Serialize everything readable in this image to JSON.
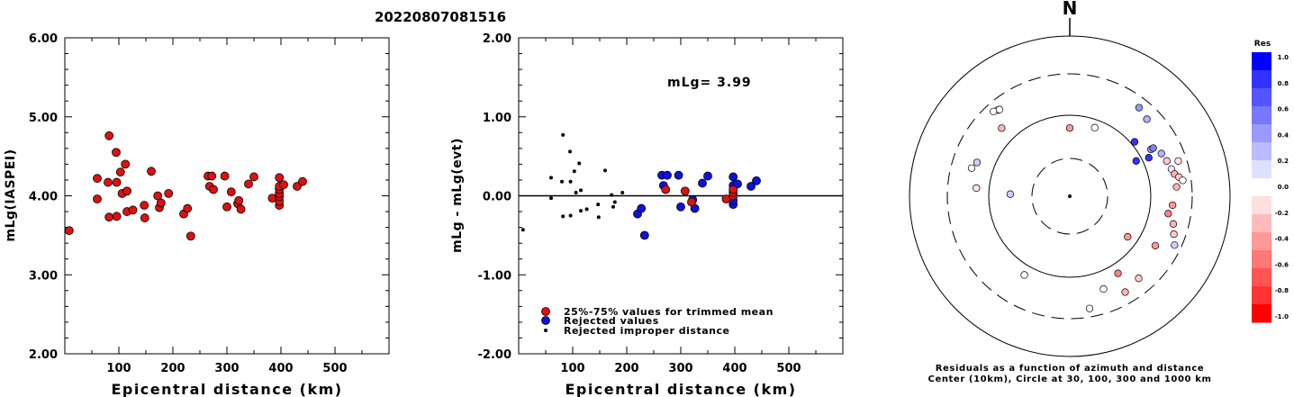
{
  "header": {
    "title": "20220807081516"
  },
  "panel1": {
    "ylabel": "mLg(IASPEI)",
    "xlabel": "Epicentral distance (km)"
  },
  "panel2": {
    "ylabel": "mLg - mLg(evt)",
    "xlabel": "Epicentral distance (km)",
    "mlg_text": "mLg= 3.99"
  },
  "legend": {
    "items": [
      {
        "label": "25%-75% values for trimmed mean",
        "color": "#dd1111"
      },
      {
        "label": "Rejected values",
        "color": "#1111dd"
      },
      {
        "label": "Rejected improper distance",
        "color": "#000000"
      }
    ]
  },
  "polar": {
    "north_label": "N",
    "caption_line1": "Residuals as a function of azimuth and distance",
    "caption_line2": "Center (10km), Circle at 30, 100, 300 and 1000 km"
  },
  "colorbar": {
    "title": "Res",
    "ticks": [
      "1.0",
      "0.8",
      "0.6",
      "0.4",
      "0.2",
      "0.0",
      "-0.2",
      "-0.4",
      "-0.6",
      "-0.8",
      "-1.0"
    ],
    "colors": [
      "#0000ff",
      "#3333ff",
      "#5555ff",
      "#7777ff",
      "#9999ff",
      "#bbbbff",
      "#dfdfff",
      "#ffffff",
      "#ffdfdf",
      "#ffbbbb",
      "#ff9999",
      "#ff7777",
      "#ff5555",
      "#ff3333",
      "#ff0000"
    ]
  },
  "chart_data": [
    {
      "type": "scatter",
      "title": "20220807081516",
      "xlabel": "Epicentral distance (km)",
      "ylabel": "mLg(IASPEI)",
      "xlim": [
        0,
        600
      ],
      "ylim": [
        2.0,
        6.0
      ],
      "x_ticks": [
        "100",
        "200",
        "300",
        "400",
        "500"
      ],
      "y_ticks": [
        "2.00",
        "3.00",
        "4.00",
        "5.00",
        "6.00"
      ],
      "points": [
        [
          8,
          3.56
        ],
        [
          60,
          4.22
        ],
        [
          60,
          3.96
        ],
        [
          80,
          4.17
        ],
        [
          82,
          4.76
        ],
        [
          82,
          3.73
        ],
        [
          95,
          4.55
        ],
        [
          96,
          4.17
        ],
        [
          96,
          3.74
        ],
        [
          103,
          4.3
        ],
        [
          106,
          4.03
        ],
        [
          112,
          4.4
        ],
        [
          115,
          4.06
        ],
        [
          115,
          3.8
        ],
        [
          126,
          3.82
        ],
        [
          147,
          3.88
        ],
        [
          148,
          3.72
        ],
        [
          160,
          4.31
        ],
        [
          172,
          4.0
        ],
        [
          175,
          3.85
        ],
        [
          178,
          3.91
        ],
        [
          192,
          4.03
        ],
        [
          220,
          3.77
        ],
        [
          227,
          3.84
        ],
        [
          233,
          3.49
        ],
        [
          265,
          4.25
        ],
        [
          268,
          4.12
        ],
        [
          272,
          4.25
        ],
        [
          275,
          4.08
        ],
        [
          296,
          4.25
        ],
        [
          300,
          3.86
        ],
        [
          308,
          4.05
        ],
        [
          320,
          3.9
        ],
        [
          322,
          3.94
        ],
        [
          326,
          3.83
        ],
        [
          340,
          4.15
        ],
        [
          350,
          4.24
        ],
        [
          384,
          3.97
        ],
        [
          397,
          3.88
        ],
        [
          397,
          3.93
        ],
        [
          397,
          3.99
        ],
        [
          397,
          4.03
        ],
        [
          397,
          4.08
        ],
        [
          397,
          4.12
        ],
        [
          397,
          4.23
        ],
        [
          405,
          4.14
        ],
        [
          430,
          4.12
        ],
        [
          440,
          4.18
        ]
      ]
    },
    {
      "type": "scatter",
      "xlabel": "Epicentral distance (km)",
      "ylabel": "mLg - mLg(evt)",
      "xlim": [
        0,
        600
      ],
      "ylim": [
        -2.0,
        2.0
      ],
      "x_ticks": [
        "100",
        "200",
        "300",
        "400",
        "500"
      ],
      "y_ticks": [
        "-2.00",
        "-1.00",
        "0.00",
        "1.00",
        "2.00"
      ],
      "annotation": "mLg= 3.99",
      "hline": 0.0,
      "series": [
        {
          "name": "25%-75% values for trimmed mean",
          "points": [
            [
              272,
              0.08
            ],
            [
              308,
              0.06
            ],
            [
              320,
              -0.08
            ],
            [
              384,
              -0.04
            ],
            [
              397,
              0.0
            ],
            [
              397,
              0.04
            ],
            [
              397,
              0.08
            ]
          ]
        },
        {
          "name": "Rejected values",
          "points": [
            [
              220,
              -0.23
            ],
            [
              227,
              -0.16
            ],
            [
              233,
              -0.5
            ],
            [
              265,
              0.26
            ],
            [
              268,
              0.13
            ],
            [
              275,
              0.26
            ],
            [
              296,
              0.26
            ],
            [
              300,
              -0.14
            ],
            [
              322,
              -0.05
            ],
            [
              326,
              -0.16
            ],
            [
              340,
              0.16
            ],
            [
              350,
              0.25
            ],
            [
              397,
              -0.11
            ],
            [
              397,
              -0.06
            ],
            [
              397,
              0.13
            ],
            [
              397,
              0.24
            ],
            [
              405,
              0.15
            ],
            [
              430,
              0.12
            ],
            [
              440,
              0.19
            ]
          ]
        },
        {
          "name": "Rejected improper distance",
          "points": [
            [
              8,
              -0.43
            ],
            [
              60,
              0.23
            ],
            [
              60,
              -0.03
            ],
            [
              80,
              0.18
            ],
            [
              82,
              0.77
            ],
            [
              82,
              -0.26
            ],
            [
              95,
              0.56
            ],
            [
              96,
              0.18
            ],
            [
              96,
              -0.25
            ],
            [
              103,
              0.31
            ],
            [
              106,
              0.04
            ],
            [
              112,
              0.41
            ],
            [
              115,
              0.07
            ],
            [
              115,
              -0.19
            ],
            [
              126,
              -0.17
            ],
            [
              147,
              -0.11
            ],
            [
              148,
              -0.27
            ],
            [
              160,
              0.32
            ],
            [
              172,
              0.01
            ],
            [
              175,
              -0.14
            ],
            [
              178,
              -0.08
            ],
            [
              192,
              0.04
            ]
          ]
        }
      ]
    },
    {
      "type": "scatter",
      "subtype": "polar",
      "description_text": "Residuals as a function of azimuth and distance",
      "radial_scale": "log",
      "rings_km": [
        10,
        30,
        100,
        300,
        1000
      ],
      "points_az_dist_res": [
        [
          320,
          230,
          0.0
        ],
        [
          318,
          240,
          0.0
        ],
        [
          321,
          225,
          0.0
        ],
        [
          315,
          150,
          -0.3
        ],
        [
          290,
          160,
          0.2
        ],
        [
          286,
          175,
          0.0
        ],
        [
          275,
          140,
          -0.1
        ],
        [
          272,
          55,
          0.2
        ],
        [
          0,
          70,
          -0.4
        ],
        [
          20,
          80,
          0.0
        ],
        [
          45,
          210,
          0.3
        ],
        [
          38,
          230,
          0.4
        ],
        [
          50,
          110,
          0.8
        ],
        [
          60,
          140,
          0.4
        ],
        [
          64,
          120,
          0.8
        ],
        [
          60,
          150,
          0.5
        ],
        [
          62,
          85,
          0.8
        ],
        [
          65,
          170,
          0.3
        ],
        [
          70,
          180,
          -0.2
        ],
        [
          75,
          190,
          0.1
        ],
        [
          78,
          200,
          -0.3
        ],
        [
          80,
          220,
          -0.2
        ],
        [
          72,
          240,
          -0.1
        ],
        [
          85,
          200,
          -0.3
        ],
        [
          82,
          240,
          0.0
        ],
        [
          95,
          180,
          -0.4
        ],
        [
          100,
          165,
          -0.5
        ],
        [
          105,
          200,
          -0.3
        ],
        [
          110,
          220,
          -0.2
        ],
        [
          115,
          250,
          0.2
        ],
        [
          120,
          160,
          -0.4
        ],
        [
          125,
          75,
          -0.4
        ],
        [
          140,
          200,
          -0.2
        ],
        [
          148,
          130,
          -0.5
        ],
        [
          150,
          220,
          -0.3
        ],
        [
          160,
          160,
          0.0
        ],
        [
          170,
          240,
          0.0
        ],
        [
          210,
          130,
          0.0
        ]
      ]
    }
  ]
}
